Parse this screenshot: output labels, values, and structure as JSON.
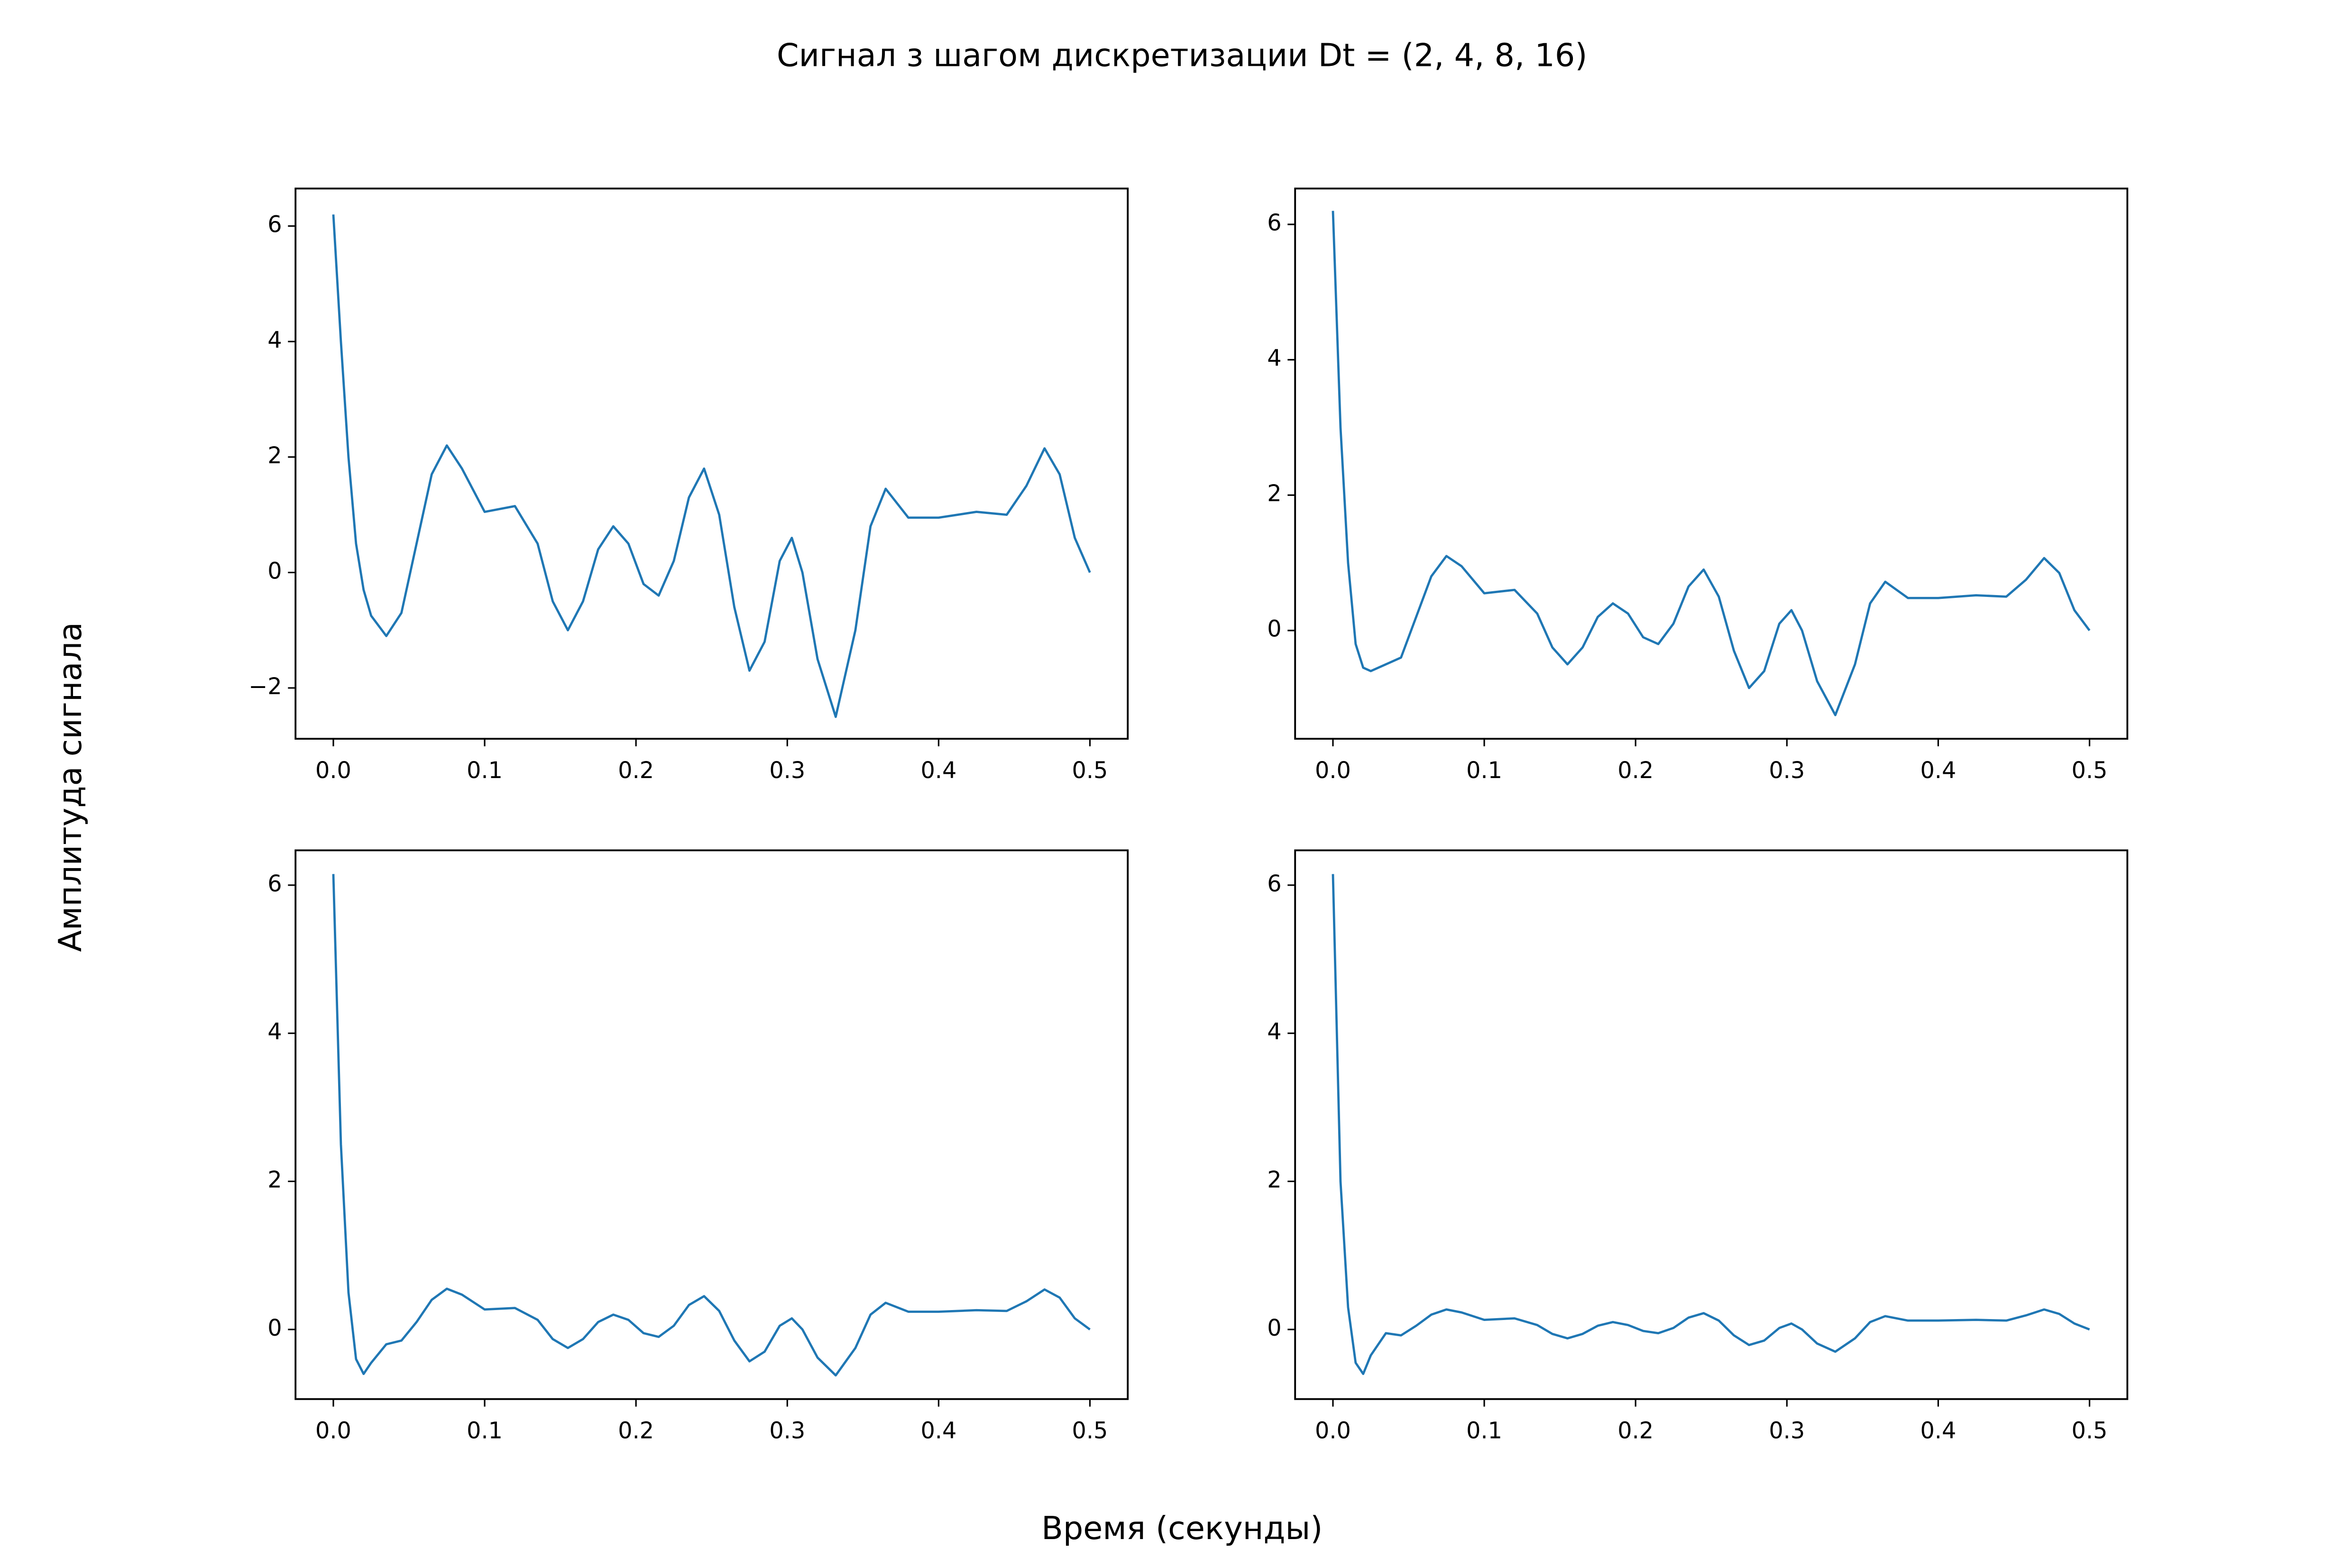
{
  "title": "Сигнал з шагом дискретизации Dt = (2, 4, 8, 16)",
  "xlabel": "Время (секунды)",
  "ylabel": "Амплитуда сигнала",
  "chart_data": [
    {
      "type": "line",
      "x": [
        0,
        0.005,
        0.01,
        0.015,
        0.02,
        0.025,
        0.035,
        0.045,
        0.055,
        0.065,
        0.075,
        0.085,
        0.1,
        0.12,
        0.135,
        0.145,
        0.155,
        0.165,
        0.175,
        0.185,
        0.195,
        0.205,
        0.215,
        0.225,
        0.235,
        0.245,
        0.255,
        0.265,
        0.275,
        0.285,
        0.295,
        0.303,
        0.31,
        0.32,
        0.332,
        0.345,
        0.355,
        0.365,
        0.38,
        0.4,
        0.425,
        0.445,
        0.458,
        0.47,
        0.48,
        0.49,
        0.5
      ],
      "values": [
        6.2,
        4.0,
        2.0,
        0.5,
        -0.3,
        -0.75,
        -1.1,
        -0.7,
        0.5,
        1.7,
        2.2,
        1.8,
        1.05,
        1.15,
        0.5,
        -0.5,
        -1.0,
        -0.5,
        0.4,
        0.8,
        0.5,
        -0.2,
        -0.4,
        0.2,
        1.3,
        1.8,
        1.0,
        -0.6,
        -1.7,
        -1.2,
        0.2,
        0.6,
        0.0,
        -1.5,
        -2.5,
        -1.0,
        0.8,
        1.45,
        0.95,
        0.95,
        1.05,
        1.0,
        1.5,
        2.15,
        1.7,
        0.6,
        0.0
      ],
      "color": "#1f77b4",
      "xlim": [
        -0.025,
        0.525
      ],
      "ylim": [
        -2.88,
        6.65
      ],
      "xticks": [
        {
          "value": 0,
          "label": "0.0"
        },
        0.1,
        0.2,
        0.3,
        0.4,
        0.5
      ],
      "yticks": [
        {
          "value": -2,
          "label": "−2"
        },
        0,
        2,
        4,
        6
      ]
    },
    {
      "type": "line",
      "x": [
        0,
        0.005,
        0.01,
        0.015,
        0.02,
        0.025,
        0.035,
        0.045,
        0.055,
        0.065,
        0.075,
        0.085,
        0.1,
        0.12,
        0.135,
        0.145,
        0.155,
        0.165,
        0.175,
        0.185,
        0.195,
        0.205,
        0.215,
        0.225,
        0.235,
        0.245,
        0.255,
        0.265,
        0.275,
        0.285,
        0.295,
        0.303,
        0.31,
        0.32,
        0.332,
        0.345,
        0.355,
        0.365,
        0.38,
        0.4,
        0.425,
        0.445,
        0.458,
        0.47,
        0.48,
        0.49,
        0.5
      ],
      "values": [
        6.2,
        3.0,
        1.0,
        -0.2,
        -0.55,
        -0.6,
        -0.5,
        -0.4,
        0.2,
        0.8,
        1.1,
        0.95,
        0.55,
        0.6,
        0.25,
        -0.25,
        -0.5,
        -0.25,
        0.2,
        0.4,
        0.25,
        -0.1,
        -0.2,
        0.1,
        0.65,
        0.9,
        0.5,
        -0.3,
        -0.85,
        -0.6,
        0.1,
        0.3,
        0.0,
        -0.75,
        -1.25,
        -0.5,
        0.4,
        0.72,
        0.48,
        0.48,
        0.52,
        0.5,
        0.75,
        1.07,
        0.85,
        0.3,
        0.0
      ],
      "color": "#1f77b4",
      "xlim": [
        -0.025,
        0.525
      ],
      "ylim": [
        -1.6,
        6.53
      ],
      "xticks": [
        {
          "value": 0,
          "label": "0.0"
        },
        0.1,
        0.2,
        0.3,
        0.4,
        0.5
      ],
      "yticks": [
        0,
        2,
        4,
        6
      ]
    },
    {
      "type": "line",
      "x": [
        0,
        0.005,
        0.01,
        0.015,
        0.02,
        0.025,
        0.035,
        0.045,
        0.055,
        0.065,
        0.075,
        0.085,
        0.1,
        0.12,
        0.135,
        0.145,
        0.155,
        0.165,
        0.175,
        0.185,
        0.195,
        0.205,
        0.215,
        0.225,
        0.235,
        0.245,
        0.255,
        0.265,
        0.275,
        0.285,
        0.295,
        0.303,
        0.31,
        0.32,
        0.332,
        0.345,
        0.355,
        0.365,
        0.38,
        0.4,
        0.425,
        0.445,
        0.458,
        0.47,
        0.48,
        0.49,
        0.5
      ],
      "values": [
        6.15,
        2.5,
        0.5,
        -0.4,
        -0.6,
        -0.45,
        -0.2,
        -0.15,
        0.1,
        0.4,
        0.55,
        0.47,
        0.27,
        0.29,
        0.13,
        -0.13,
        -0.25,
        -0.13,
        0.1,
        0.2,
        0.13,
        -0.05,
        -0.1,
        0.05,
        0.33,
        0.45,
        0.25,
        -0.15,
        -0.43,
        -0.3,
        0.05,
        0.15,
        0.0,
        -0.38,
        -0.62,
        -0.25,
        0.2,
        0.36,
        0.24,
        0.24,
        0.26,
        0.25,
        0.38,
        0.54,
        0.43,
        0.15,
        0.0
      ],
      "color": "#1f77b4",
      "xlim": [
        -0.025,
        0.525
      ],
      "ylim": [
        -0.94,
        6.47
      ],
      "xticks": [
        {
          "value": 0,
          "label": "0.0"
        },
        0.1,
        0.2,
        0.3,
        0.4,
        0.5
      ],
      "yticks": [
        0,
        2,
        4,
        6
      ]
    },
    {
      "type": "line",
      "x": [
        0,
        0.005,
        0.01,
        0.015,
        0.02,
        0.025,
        0.035,
        0.045,
        0.055,
        0.065,
        0.075,
        0.085,
        0.1,
        0.12,
        0.135,
        0.145,
        0.155,
        0.165,
        0.175,
        0.185,
        0.195,
        0.205,
        0.215,
        0.225,
        0.235,
        0.245,
        0.255,
        0.265,
        0.275,
        0.285,
        0.295,
        0.303,
        0.31,
        0.32,
        0.332,
        0.345,
        0.355,
        0.365,
        0.38,
        0.4,
        0.425,
        0.445,
        0.458,
        0.47,
        0.48,
        0.49,
        0.5
      ],
      "values": [
        6.15,
        2.0,
        0.3,
        -0.45,
        -0.6,
        -0.35,
        -0.05,
        -0.08,
        0.05,
        0.2,
        0.27,
        0.23,
        0.13,
        0.15,
        0.06,
        -0.06,
        -0.12,
        -0.06,
        0.05,
        0.1,
        0.06,
        -0.02,
        -0.05,
        0.02,
        0.16,
        0.22,
        0.12,
        -0.08,
        -0.21,
        -0.15,
        0.02,
        0.08,
        0.0,
        -0.19,
        -0.3,
        -0.12,
        0.1,
        0.18,
        0.12,
        0.12,
        0.13,
        0.12,
        0.19,
        0.27,
        0.21,
        0.08,
        0.0
      ],
      "color": "#1f77b4",
      "xlim": [
        -0.025,
        0.525
      ],
      "ylim": [
        -0.94,
        6.47
      ],
      "xticks": [
        {
          "value": 0,
          "label": "0.0"
        },
        0.1,
        0.2,
        0.3,
        0.4,
        0.5
      ],
      "yticks": [
        0,
        2,
        4,
        6
      ]
    }
  ]
}
